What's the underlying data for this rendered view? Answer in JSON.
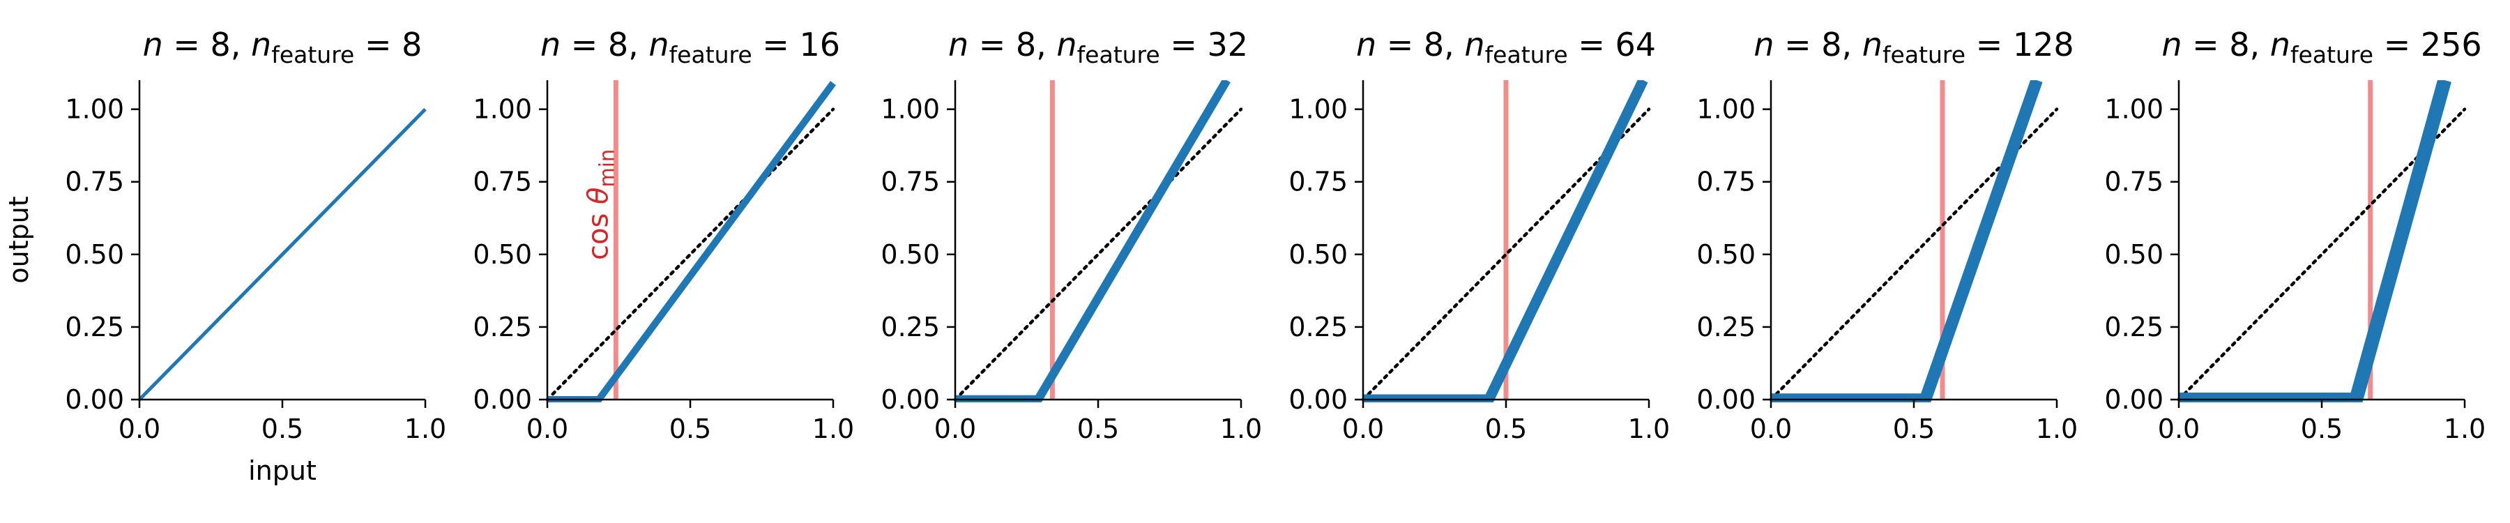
{
  "chart_data": [
    {
      "type": "line",
      "title": {
        "n": "8",
        "n_feature": "8"
      },
      "xlabel": "input",
      "ylabel": "output",
      "xlim": [
        0,
        1
      ],
      "ylim": [
        0,
        1.1
      ],
      "xticks": [
        "0.0",
        "0.5",
        "1.0"
      ],
      "yticks": [
        "0.00",
        "0.25",
        "0.50",
        "0.75",
        "1.00"
      ],
      "series": [
        {
          "style": "solid",
          "color": "#1f77b4",
          "weight": 1,
          "x": [
            0,
            1
          ],
          "y": [
            0,
            1
          ]
        }
      ]
    },
    {
      "type": "line",
      "title": {
        "n": "8",
        "n_feature": "16"
      },
      "xlim": [
        0,
        1
      ],
      "ylim": [
        0,
        1.1
      ],
      "xticks": [
        "0.0",
        "0.5",
        "1.0"
      ],
      "yticks": [
        "0.00",
        "0.25",
        "0.50",
        "0.75",
        "1.00"
      ],
      "threshold": {
        "x": 0.24,
        "color": "#f08c8c",
        "label": "cos θ_min"
      },
      "series": [
        {
          "style": "dotted",
          "color": "#000000",
          "x": [
            0,
            1
          ],
          "y": [
            0,
            1
          ]
        },
        {
          "style": "solid",
          "color": "#1f77b4",
          "weight": 2,
          "x": [
            0,
            0.18,
            1
          ],
          "y": [
            0,
            0,
            1.09
          ]
        }
      ]
    },
    {
      "type": "line",
      "title": {
        "n": "8",
        "n_feature": "32"
      },
      "xlim": [
        0,
        1
      ],
      "ylim": [
        0,
        1.1
      ],
      "xticks": [
        "0.0",
        "0.5",
        "1.0"
      ],
      "yticks": [
        "0.00",
        "0.25",
        "0.50",
        "0.75",
        "1.00"
      ],
      "threshold": {
        "x": 0.34,
        "color": "#f08c8c"
      },
      "series": [
        {
          "style": "dotted",
          "color": "#000000",
          "x": [
            0,
            1
          ],
          "y": [
            0,
            1
          ]
        },
        {
          "style": "solid",
          "color": "#1f77b4",
          "weight": 2.5,
          "x": [
            0,
            0.29,
            0.95
          ],
          "y": [
            0,
            0,
            1.1
          ]
        }
      ]
    },
    {
      "type": "line",
      "title": {
        "n": "8",
        "n_feature": "64"
      },
      "xlim": [
        0,
        1
      ],
      "ylim": [
        0,
        1.1
      ],
      "xticks": [
        "0.0",
        "0.5",
        "1.0"
      ],
      "yticks": [
        "0.00",
        "0.25",
        "0.50",
        "0.75",
        "1.00"
      ],
      "threshold": {
        "x": 0.5,
        "color": "#f08c8c"
      },
      "series": [
        {
          "style": "dotted",
          "color": "#000000",
          "x": [
            0,
            1
          ],
          "y": [
            0,
            1
          ]
        },
        {
          "style": "solid",
          "color": "#1f77b4",
          "weight": 3,
          "x": [
            0,
            0.44,
            0.98
          ],
          "y": [
            0,
            0,
            1.1
          ]
        }
      ]
    },
    {
      "type": "line",
      "title": {
        "n": "8",
        "n_feature": "128"
      },
      "xlim": [
        0,
        1
      ],
      "ylim": [
        0,
        1.1
      ],
      "xticks": [
        "0.0",
        "0.5",
        "1.0"
      ],
      "yticks": [
        "0.00",
        "0.25",
        "0.50",
        "0.75",
        "1.00"
      ],
      "threshold": {
        "x": 0.6,
        "color": "#f08c8c"
      },
      "series": [
        {
          "style": "dotted",
          "color": "#000000",
          "x": [
            0,
            1
          ],
          "y": [
            0,
            1
          ]
        },
        {
          "style": "solid",
          "color": "#1f77b4",
          "weight": 3.5,
          "x": [
            0,
            0.54,
            0.93
          ],
          "y": [
            0,
            0,
            1.1
          ]
        }
      ]
    },
    {
      "type": "line",
      "title": {
        "n": "8",
        "n_feature": "256"
      },
      "xlim": [
        0,
        1
      ],
      "ylim": [
        0,
        1.1
      ],
      "xticks": [
        "0.0",
        "0.5",
        "1.0"
      ],
      "yticks": [
        "0.00",
        "0.25",
        "0.50",
        "0.75",
        "1.00"
      ],
      "threshold": {
        "x": 0.67,
        "color": "#f08c8c"
      },
      "series": [
        {
          "style": "dotted",
          "color": "#000000",
          "x": [
            0,
            1
          ],
          "y": [
            0,
            1
          ]
        },
        {
          "style": "solid",
          "color": "#1f77b4",
          "weight": 4,
          "x": [
            0,
            0.62,
            0.93
          ],
          "y": [
            0,
            0,
            1.1
          ]
        }
      ]
    }
  ]
}
